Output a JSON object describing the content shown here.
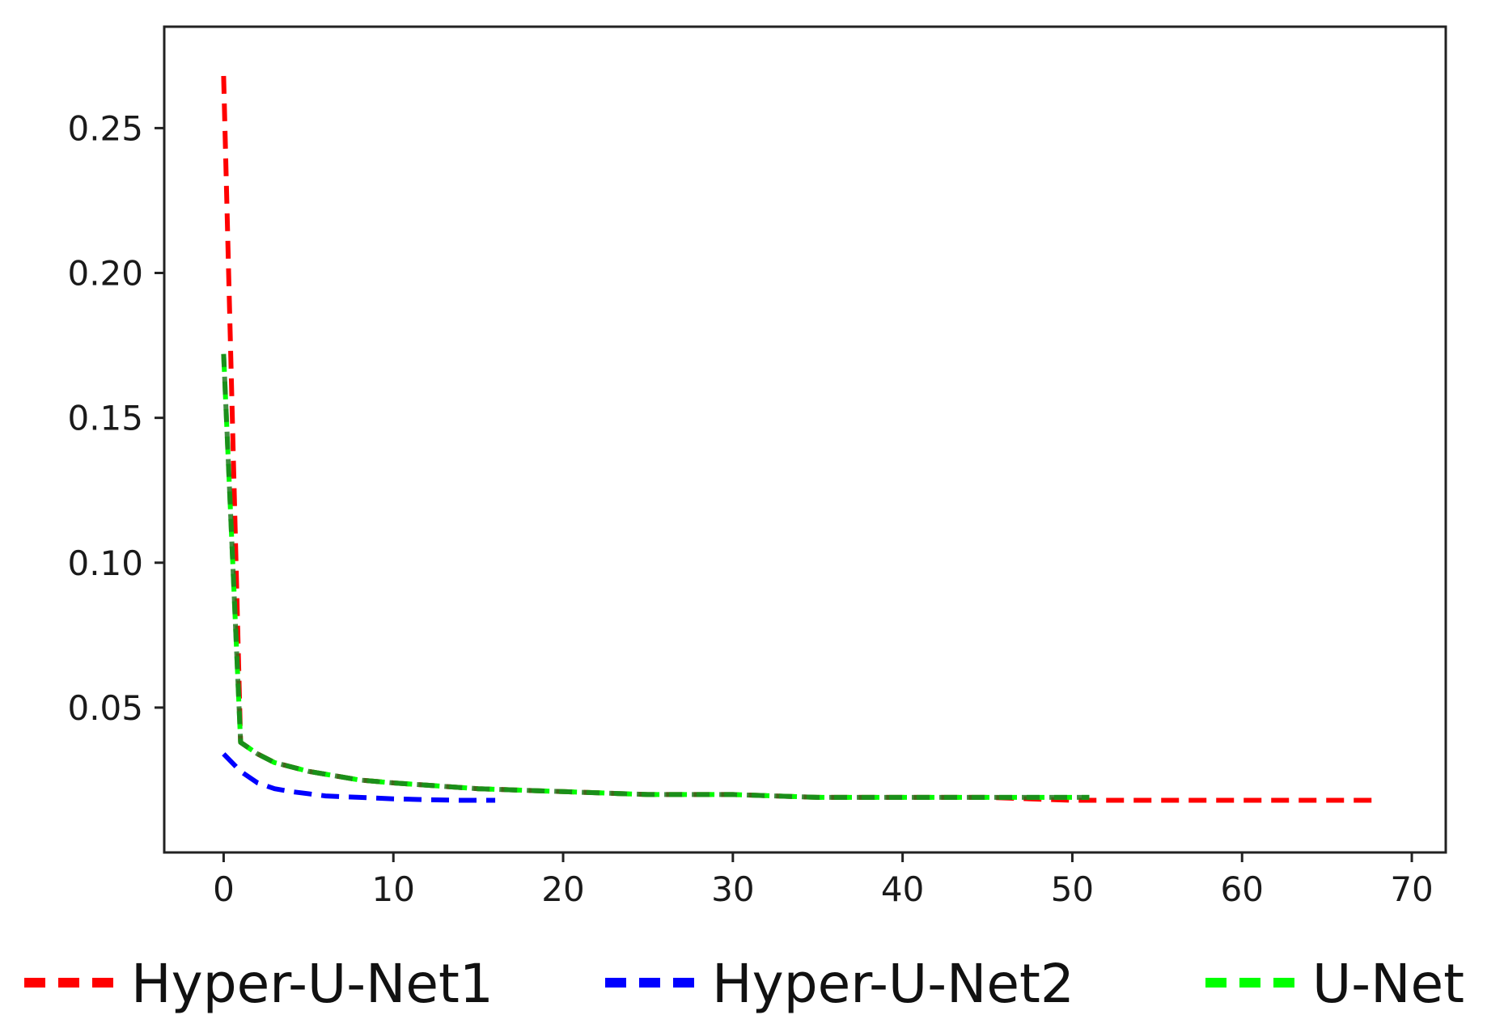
{
  "chart_data": {
    "type": "line",
    "title": "",
    "xlabel": "",
    "ylabel": "",
    "xlim": [
      -3.5,
      72
    ],
    "ylim": [
      0.0,
      0.285
    ],
    "x_ticks": [
      0,
      10,
      20,
      30,
      40,
      50,
      60,
      70
    ],
    "y_ticks": [
      0.05,
      0.1,
      0.15,
      0.2,
      0.25
    ],
    "x_tick_labels": [
      "0",
      "10",
      "20",
      "30",
      "40",
      "50",
      "60",
      "70"
    ],
    "y_tick_labels": [
      "0.05",
      "0.10",
      "0.15",
      "0.20",
      "0.25"
    ],
    "grid": false,
    "legend_position": "bottom",
    "series": [
      {
        "name": "Hyper-U-Net1",
        "color": "#ff0000",
        "style": "dashed",
        "x": [
          0,
          1,
          2,
          3,
          5,
          8,
          10,
          15,
          20,
          25,
          30,
          35,
          40,
          45,
          50,
          55,
          60,
          65,
          68
        ],
        "y": [
          0.268,
          0.038,
          0.034,
          0.031,
          0.028,
          0.025,
          0.024,
          0.022,
          0.021,
          0.02,
          0.02,
          0.019,
          0.019,
          0.019,
          0.018,
          0.018,
          0.018,
          0.018,
          0.018
        ]
      },
      {
        "name": "Hyper-U-Net2",
        "color": "#0000ff",
        "style": "dashed",
        "x": [
          0,
          1,
          2,
          3,
          4,
          6,
          8,
          10,
          12,
          14,
          16
        ],
        "y": [
          0.034,
          0.028,
          0.024,
          0.022,
          0.021,
          0.0195,
          0.019,
          0.0185,
          0.0182,
          0.018,
          0.018
        ]
      },
      {
        "name": "U-Net",
        "color": "#00ff00",
        "overlay_color": "#1e7b1e",
        "style": "dashed",
        "x": [
          0,
          1,
          2,
          3,
          5,
          8,
          10,
          15,
          20,
          25,
          30,
          35,
          40,
          45,
          51
        ],
        "y": [
          0.172,
          0.038,
          0.034,
          0.031,
          0.028,
          0.025,
          0.024,
          0.022,
          0.021,
          0.02,
          0.02,
          0.019,
          0.019,
          0.019,
          0.019
        ]
      }
    ]
  }
}
